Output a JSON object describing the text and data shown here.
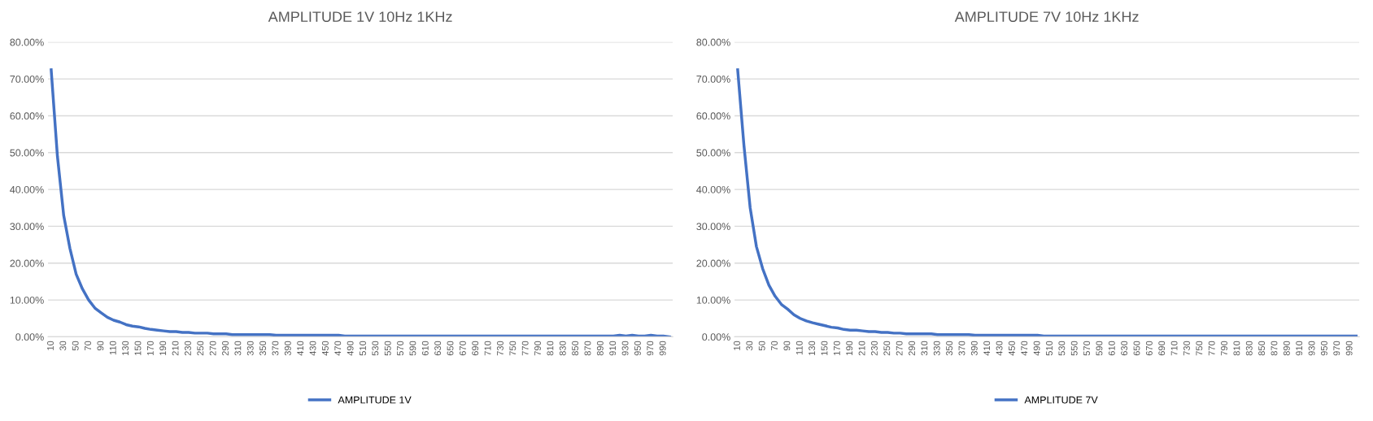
{
  "chart_data": [
    {
      "type": "line",
      "title": "AMPLITUDE 1V 10Hz 1KHz",
      "categories": [
        "10",
        null,
        "30",
        null,
        "50",
        null,
        "70",
        null,
        "90",
        null,
        "110",
        null,
        "130",
        null,
        "150",
        null,
        "170",
        null,
        "190",
        null,
        "210",
        null,
        "230",
        null,
        "250",
        null,
        "270",
        null,
        "290",
        null,
        "310",
        null,
        "330",
        null,
        "350",
        null,
        "370",
        null,
        "390",
        null,
        "410",
        null,
        "430",
        null,
        "450",
        null,
        "470",
        null,
        "490",
        null,
        "510",
        null,
        "530",
        null,
        "550",
        null,
        "570",
        null,
        "590",
        null,
        "610",
        null,
        "630",
        null,
        "650",
        null,
        "670",
        null,
        "690",
        null,
        "710",
        null,
        "730",
        null,
        "750",
        null,
        "770",
        null,
        "790",
        null,
        "810",
        null,
        "830",
        null,
        "850",
        null,
        "870",
        null,
        "890",
        null,
        "910",
        null,
        "930",
        null,
        "950",
        null,
        "970",
        null,
        "990",
        null
      ],
      "series": [
        {
          "name": "AMPLITUDE 1V",
          "color": "#4472c4",
          "values": [
            72.5,
            49,
            33,
            24,
            17,
            13,
            10,
            7.8,
            6.5,
            5.3,
            4.5,
            4.0,
            3.3,
            2.9,
            2.7,
            2.3,
            2.0,
            1.8,
            1.6,
            1.4,
            1.4,
            1.2,
            1.2,
            1.0,
            1.0,
            1.0,
            0.8,
            0.8,
            0.8,
            0.6,
            0.6,
            0.6,
            0.6,
            0.6,
            0.6,
            0.6,
            0.4,
            0.4,
            0.4,
            0.4,
            0.4,
            0.4,
            0.4,
            0.4,
            0.4,
            0.4,
            0.4,
            0.2,
            0.2,
            0.2,
            0.2,
            0.2,
            0.2,
            0.2,
            0.2,
            0.2,
            0.2,
            0.2,
            0.2,
            0.2,
            0.2,
            0.2,
            0.2,
            0.2,
            0.2,
            0.2,
            0.2,
            0.2,
            0.2,
            0.2,
            0.2,
            0.2,
            0.2,
            0.2,
            0.2,
            0.2,
            0.2,
            0.2,
            0.2,
            0.2,
            0.2,
            0.2,
            0.2,
            0.2,
            0.2,
            0.2,
            0.2,
            0.2,
            0.2,
            0.2,
            0.2,
            0.4,
            0.2,
            0.4,
            0.2,
            0.2,
            0.4,
            0.2,
            0.2,
            0.0
          ]
        }
      ],
      "ylim": [
        0,
        80
      ],
      "yticks": [
        {
          "value": 0,
          "label": "0.00%"
        },
        {
          "value": 10,
          "label": "10.00%"
        },
        {
          "value": 20,
          "label": "20.00%"
        },
        {
          "value": 30,
          "label": "30.00%"
        },
        {
          "value": 40,
          "label": "40.00%"
        },
        {
          "value": 50,
          "label": "50.00%"
        },
        {
          "value": 60,
          "label": "60.00%"
        },
        {
          "value": 70,
          "label": "70.00%"
        },
        {
          "value": 80,
          "label": "80.00%"
        }
      ],
      "grid": "y",
      "legend": "bottom",
      "marker": "none",
      "line_style": "solid"
    },
    {
      "type": "line",
      "title": "AMPLITUDE 7V 10Hz 1KHz",
      "categories": [
        "10",
        null,
        "30",
        null,
        "50",
        null,
        "70",
        null,
        "90",
        null,
        "110",
        null,
        "130",
        null,
        "150",
        null,
        "170",
        null,
        "190",
        null,
        "210",
        null,
        "230",
        null,
        "250",
        null,
        "270",
        null,
        "290",
        null,
        "310",
        null,
        "330",
        null,
        "350",
        null,
        "370",
        null,
        "390",
        null,
        "410",
        null,
        "430",
        null,
        "450",
        null,
        "470",
        null,
        "490",
        null,
        "510",
        null,
        "530",
        null,
        "550",
        null,
        "570",
        null,
        "590",
        null,
        "610",
        null,
        "630",
        null,
        "650",
        null,
        "670",
        null,
        "690",
        null,
        "710",
        null,
        "730",
        null,
        "750",
        null,
        "770",
        null,
        "790",
        null,
        "810",
        null,
        "830",
        null,
        "850",
        null,
        "870",
        null,
        "890",
        null,
        "910",
        null,
        "930",
        null,
        "950",
        null,
        "970",
        null,
        "990",
        null
      ],
      "series": [
        {
          "name": "AMPLITUDE 7V",
          "color": "#4472c4",
          "values": [
            72.5,
            52,
            35,
            24.5,
            18.5,
            14,
            11,
            8.8,
            7.5,
            6,
            5,
            4.3,
            3.8,
            3.4,
            3.0,
            2.6,
            2.4,
            2.0,
            1.8,
            1.8,
            1.6,
            1.4,
            1.4,
            1.2,
            1.2,
            1.0,
            1.0,
            0.8,
            0.8,
            0.8,
            0.8,
            0.8,
            0.6,
            0.6,
            0.6,
            0.6,
            0.6,
            0.6,
            0.4,
            0.4,
            0.4,
            0.4,
            0.4,
            0.4,
            0.4,
            0.4,
            0.4,
            0.4,
            0.4,
            0.2,
            0.2,
            0.2,
            0.2,
            0.2,
            0.2,
            0.2,
            0.2,
            0.2,
            0.2,
            0.2,
            0.2,
            0.2,
            0.2,
            0.2,
            0.2,
            0.2,
            0.2,
            0.2,
            0.2,
            0.2,
            0.2,
            0.2,
            0.2,
            0.2,
            0.2,
            0.2,
            0.2,
            0.2,
            0.2,
            0.2,
            0.2,
            0.2,
            0.2,
            0.2,
            0.2,
            0.2,
            0.2,
            0.2,
            0.2,
            0.2,
            0.2,
            0.2,
            0.2,
            0.2,
            0.2,
            0.2,
            0.2,
            0.2,
            0.2,
            0.2
          ]
        }
      ],
      "ylim": [
        0,
        80
      ],
      "yticks": [
        {
          "value": 0,
          "label": "0.00%"
        },
        {
          "value": 10,
          "label": "10.00%"
        },
        {
          "value": 20,
          "label": "20.00%"
        },
        {
          "value": 30,
          "label": "30.00%"
        },
        {
          "value": 40,
          "label": "40.00%"
        },
        {
          "value": 50,
          "label": "50.00%"
        },
        {
          "value": 60,
          "label": "60.00%"
        },
        {
          "value": 70,
          "label": "70.00%"
        },
        {
          "value": 80,
          "label": "80.00%"
        }
      ],
      "grid": "y",
      "legend": "bottom",
      "marker": "none",
      "line_style": "solid"
    }
  ]
}
